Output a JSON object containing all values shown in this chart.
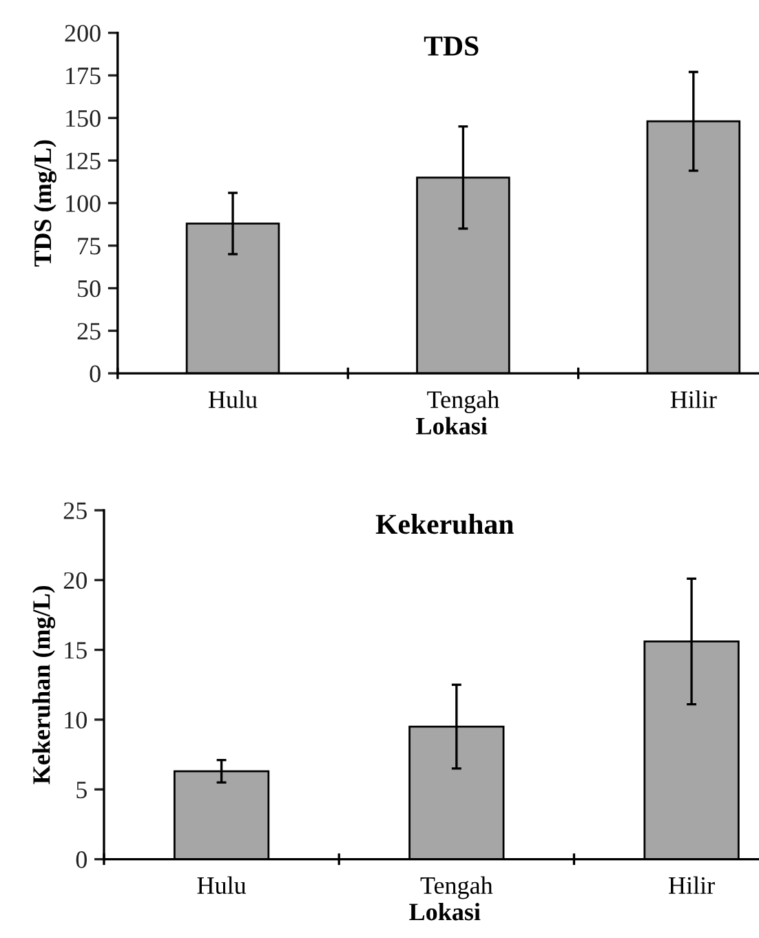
{
  "chart_data": [
    {
      "type": "bar",
      "title": "TDS",
      "xlabel": "Lokasi",
      "ylabel": "TDS (mg/L)",
      "categories": [
        "Hulu",
        "Tengah",
        "Hilir"
      ],
      "series": [
        {
          "color": "#a6a6a6",
          "values": [
            88,
            115,
            148
          ],
          "errors": [
            18,
            30,
            29
          ]
        }
      ],
      "ylim": [
        0,
        200
      ],
      "yticks": [
        0,
        25,
        50,
        75,
        100,
        125,
        150,
        175,
        200
      ],
      "grid": false,
      "legend": false
    },
    {
      "type": "bar",
      "title": "Kekeruhan",
      "xlabel": "Lokasi",
      "ylabel": "Kekeruhan (mg/L)",
      "categories": [
        "Hulu",
        "Tengah",
        "Hilir"
      ],
      "series": [
        {
          "color": "#a6a6a6",
          "values": [
            6.3,
            9.5,
            15.6
          ],
          "errors": [
            0.8,
            3,
            4.5
          ]
        }
      ],
      "ylim": [
        0,
        25
      ],
      "yticks": [
        0,
        5,
        10,
        15,
        20,
        25
      ],
      "grid": false,
      "legend": false
    }
  ]
}
